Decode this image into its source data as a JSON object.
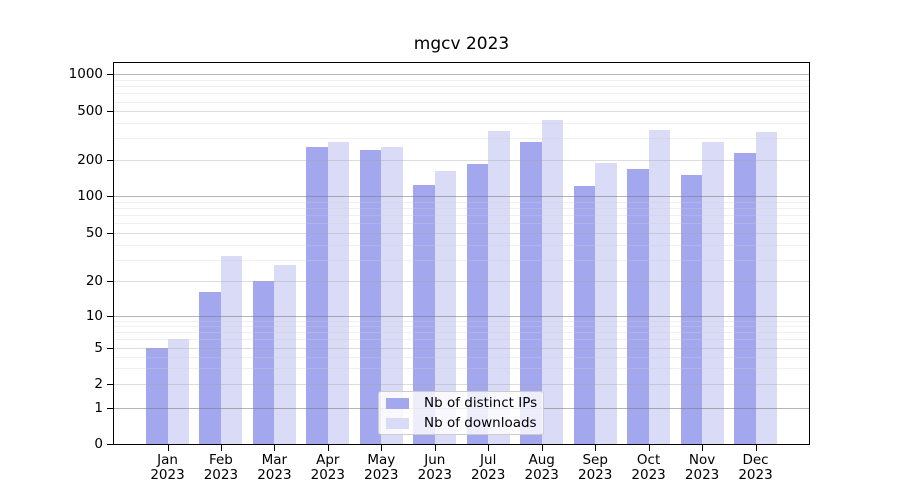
{
  "chart_data": {
    "type": "bar",
    "title": "mgcv 2023",
    "categories": [
      "Jan 2023",
      "Feb 2023",
      "Mar 2023",
      "Apr 2023",
      "May 2023",
      "Jun 2023",
      "Jul 2023",
      "Aug 2023",
      "Sep 2023",
      "Oct 2023",
      "Nov 2023",
      "Dec 2023"
    ],
    "series": [
      {
        "name": "Nb of distinct IPs",
        "color": "#a3a7ee",
        "values": [
          5,
          16,
          20,
          257,
          243,
          123,
          185,
          282,
          121,
          169,
          149,
          226
        ]
      },
      {
        "name": "Nb of downloads",
        "color": "#d9dbf7",
        "values": [
          6,
          32,
          27,
          282,
          254,
          162,
          343,
          428,
          188,
          352,
          282,
          336
        ]
      }
    ],
    "xlabel": "",
    "ylabel": "",
    "yscale": "quasi-log (linear 0-1, logarithmic above 1)",
    "ylim": [
      0,
      1200
    ],
    "yticks": [
      0,
      1,
      2,
      5,
      10,
      20,
      50,
      100,
      200,
      500,
      1000
    ],
    "minor_gridlines": [
      3,
      4,
      6,
      7,
      8,
      9,
      30,
      40,
      60,
      70,
      80,
      90,
      300,
      400,
      600,
      700,
      800,
      900
    ],
    "grid": "horizontal, drawn over bars",
    "grid_colors": {
      "power_of_ten": "#b5b5b5",
      "labeled": "#d9d9d9",
      "minor": "#ececec"
    },
    "legend_position": "bottom-center",
    "background_color": "#ffffff",
    "axis_color": "#000000"
  }
}
